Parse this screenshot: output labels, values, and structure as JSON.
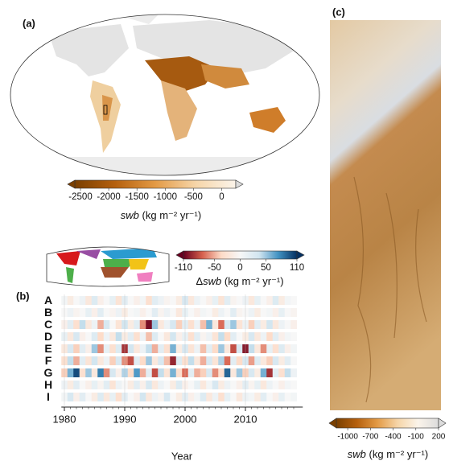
{
  "chart_data": [
    {
      "type": "map",
      "panel_label": "(a)",
      "colorbar": {
        "clim": [
          -2600,
          250
        ],
        "ticks": [
          -2500,
          -2000,
          -1500,
          -1000,
          -500,
          0
        ],
        "colormap": [
          "#7a3f00",
          "#b5600e",
          "#e39a45",
          "#f6d5a8",
          "#fbf4ea"
        ],
        "over_color": "#dcdcdc",
        "label": {
          "var": "swb",
          "unit": "(kg m⁻² yr⁻¹)"
        }
      }
    },
    {
      "type": "heatmap",
      "panel_label": "(b)",
      "xlabel": "Year",
      "xlim": [
        1979.5,
        2019.5
      ],
      "xticks": [
        1980,
        1990,
        2000,
        2010
      ],
      "grid": true,
      "x": [
        1980,
        1981,
        1982,
        1983,
        1984,
        1985,
        1986,
        1987,
        1988,
        1989,
        1990,
        1991,
        1992,
        1993,
        1994,
        1995,
        1996,
        1997,
        1998,
        1999,
        2000,
        2001,
        2002,
        2003,
        2004,
        2005,
        2006,
        2007,
        2008,
        2009,
        2010,
        2011,
        2012,
        2013,
        2014,
        2015,
        2016,
        2017,
        2018
      ],
      "series": [
        {
          "name": "A",
          "color": "#d7191c",
          "values": [
            5,
            -15,
            0,
            10,
            -20,
            25,
            -10,
            0,
            15,
            -25,
            20,
            0,
            -10,
            5,
            -30,
            20,
            10,
            -5,
            0,
            -15,
            30,
            -20,
            10,
            0,
            -10,
            15,
            -25,
            20,
            -5,
            0,
            10,
            -20,
            15,
            0,
            -10,
            25,
            -15,
            5,
            0
          ]
        },
        {
          "name": "B",
          "color": "#f2c318",
          "values": [
            0,
            10,
            -5,
            0,
            15,
            -10,
            20,
            0,
            -5,
            10,
            -15,
            0,
            5,
            -10,
            0,
            20,
            -5,
            10,
            0,
            -20,
            15,
            0,
            -10,
            5,
            0,
            -15,
            10,
            0,
            20,
            -5,
            0,
            10,
            -15,
            0,
            5,
            -10,
            15,
            0,
            -5
          ]
        },
        {
          "name": "C",
          "color": "#2b9bd0",
          "values": [
            -10,
            20,
            -30,
            40,
            -20,
            10,
            -50,
            30,
            0,
            -25,
            35,
            -15,
            20,
            -60,
            -105,
            50,
            -20,
            10,
            30,
            -40,
            20,
            -30,
            10,
            -45,
            60,
            -20,
            -70,
            30,
            50,
            -25,
            10,
            -40,
            20,
            -15,
            35,
            -20,
            10,
            0,
            -10
          ]
        },
        {
          "name": "D",
          "color": "#4daf4a",
          "values": [
            15,
            -20,
            30,
            -10,
            0,
            25,
            -35,
            10,
            -20,
            40,
            -15,
            20,
            -30,
            10,
            -45,
            25,
            0,
            -20,
            35,
            -10,
            15,
            -30,
            20,
            -5,
            10,
            -25,
            40,
            -35,
            20,
            0,
            -15,
            30,
            -20,
            10,
            -35,
            20,
            -10,
            5,
            0
          ]
        },
        {
          "name": "E",
          "color": "#984ea3",
          "values": [
            -20,
            30,
            -40,
            20,
            -10,
            50,
            -60,
            15,
            -30,
            25,
            -90,
            35,
            -20,
            10,
            40,
            -50,
            20,
            -30,
            60,
            -15,
            30,
            -25,
            10,
            -45,
            20,
            -35,
            50,
            -20,
            -80,
            30,
            -100,
            40,
            -20,
            -60,
            15,
            -30,
            25,
            -10,
            5
          ]
        },
        {
          "name": "F",
          "color": "#f28e1c",
          "values": [
            -30,
            40,
            -50,
            20,
            -25,
            35,
            -20,
            10,
            -40,
            30,
            -60,
            -80,
            20,
            -35,
            50,
            -20,
            30,
            -45,
            -95,
            25,
            -30,
            40,
            -20,
            -50,
            30,
            -25,
            45,
            -70,
            20,
            -35,
            30,
            -55,
            25,
            -20,
            -40,
            30,
            -15,
            20,
            0
          ]
        },
        {
          "name": "G",
          "color": "#a0522d",
          "values": [
            -40,
            60,
            100,
            -30,
            50,
            -20,
            80,
            -60,
            30,
            -10,
            45,
            -35,
            70,
            -50,
            20,
            -80,
            40,
            -25,
            60,
            -30,
            -70,
            20,
            -50,
            -40,
            30,
            -60,
            -30,
            90,
            -20,
            50,
            -40,
            30,
            -15,
            60,
            -90,
            20,
            -30,
            40,
            10
          ]
        },
        {
          "name": "H",
          "color": "#f07fc0",
          "values": [
            10,
            -15,
            20,
            0,
            -10,
            15,
            -5,
            20,
            -25,
            10,
            0,
            -15,
            20,
            -10,
            30,
            -20,
            10,
            0,
            -15,
            25,
            -10,
            0,
            15,
            -20,
            5,
            30,
            -15,
            10,
            0,
            -10,
            20,
            -5,
            15,
            -20,
            10,
            0,
            -10,
            5,
            0
          ]
        },
        {
          "name": "I",
          "color": "#9a9a9a",
          "values": [
            5,
            30,
            -10,
            20,
            0,
            -15,
            25,
            -20,
            15,
            -30,
            20,
            0,
            -10,
            35,
            -20,
            10,
            -5,
            30,
            0,
            -15,
            20,
            -10,
            5,
            25,
            -20,
            10,
            -30,
            15,
            0,
            -20,
            10,
            5,
            -15,
            20,
            0,
            -10,
            15,
            0,
            5
          ]
        }
      ],
      "colorbar": {
        "clim": [
          -110,
          110
        ],
        "ticks": [
          -110,
          -50,
          0,
          50,
          110
        ],
        "colormap": [
          "#67001f",
          "#d6604d",
          "#fddbc7",
          "#f7f7f7",
          "#d1e5f0",
          "#4393c3",
          "#053061"
        ],
        "label": {
          "prefix": "Δ",
          "var": "swb",
          "unit": "(kg m⁻² yr⁻¹)"
        }
      }
    },
    {
      "type": "image",
      "panel_label": "(c)",
      "colorbar": {
        "clim": [
          -1150,
          200
        ],
        "ticks": [
          -1000,
          -700,
          -400,
          -100,
          200
        ],
        "colormap": [
          "#7a3f00",
          "#b5600e",
          "#e39a45",
          "#f6d5a8",
          "#fbf4ea",
          "#dcdcdc"
        ],
        "over_color": "#dcdcdc",
        "label": {
          "var": "swb",
          "unit": "(kg m⁻² yr⁻¹)"
        }
      }
    }
  ]
}
